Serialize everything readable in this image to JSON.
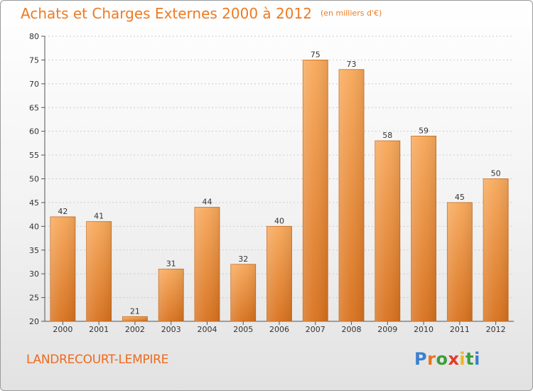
{
  "header": {
    "title": "Achats et Charges Externes 2000 à 2012",
    "unit": "(en milliers d'€)"
  },
  "footer": {
    "commune": "LANDRECOURT-LEMPIRE",
    "logo_letters": [
      {
        "ch": "P",
        "color": "#3b7fd0"
      },
      {
        "ch": "r",
        "color": "#e8731c"
      },
      {
        "ch": "o",
        "color": "#3b9e3b"
      },
      {
        "ch": "x",
        "color": "#e23a2a"
      },
      {
        "ch": "i",
        "color": "#f2b51d"
      },
      {
        "ch": "t",
        "color": "#3b9e3b"
      },
      {
        "ch": "i",
        "color": "#3b7fd0"
      }
    ]
  },
  "colors": {
    "bar_top": "#f7a85a",
    "bar_bottom": "#d8711d",
    "bar_edge": "#c86818",
    "title": "#ee7a22",
    "grid": "#cccccc"
  },
  "chart_data": {
    "type": "bar",
    "categories": [
      "2000",
      "2001",
      "2002",
      "2003",
      "2004",
      "2005",
      "2006",
      "2007",
      "2008",
      "2009",
      "2010",
      "2011",
      "2012"
    ],
    "values": [
      42,
      41,
      21,
      31,
      44,
      32,
      40,
      75,
      73,
      58,
      59,
      45,
      50
    ],
    "ylim": [
      20,
      80
    ],
    "yticks": [
      20,
      25,
      30,
      35,
      40,
      45,
      50,
      55,
      60,
      65,
      70,
      75,
      80
    ],
    "grid": "horizontal dotted",
    "show_value_labels": true
  }
}
